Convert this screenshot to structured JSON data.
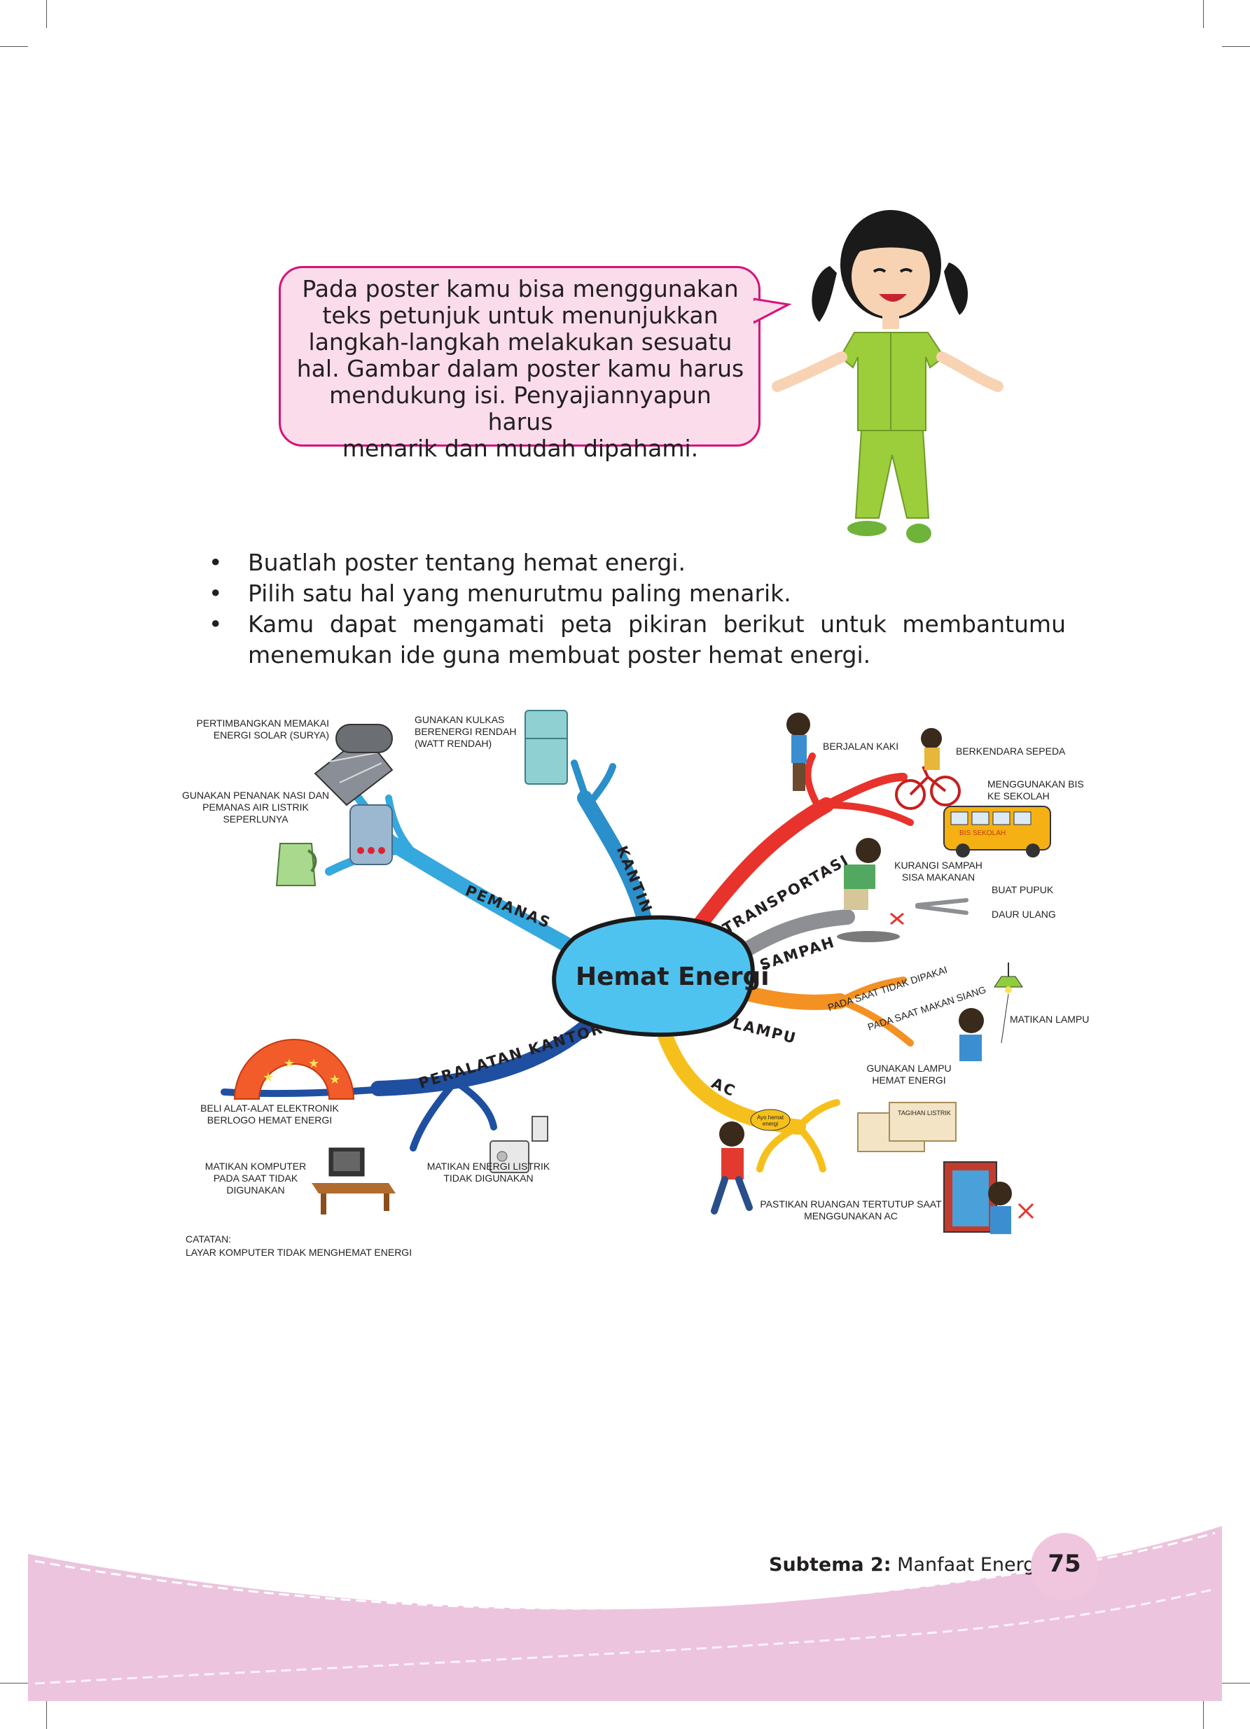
{
  "speech_bubble": {
    "lines": [
      "Pada poster kamu bisa menggunakan",
      "teks petunjuk untuk menunjukkan",
      "langkah-langkah melakukan sesuatu",
      "hal. Gambar dalam poster kamu harus",
      "mendukung isi. Penyajiannyapun harus",
      "menarik dan mudah dipahami."
    ]
  },
  "instructions": [
    "Buatlah poster tentang hemat energi.",
    "Pilih satu hal yang menurutmu paling menarik.",
    "Kamu dapat mengamati peta pikiran berikut untuk membantumu menemukan ide guna membuat poster hemat energi."
  ],
  "bullet_symbol": "•",
  "mind_map": {
    "center": "Hemat Energi",
    "branches": {
      "pemanas": "PEMANAS",
      "kantin": "KANTIN",
      "transportasi": "TRANSPORTASI",
      "sampah": "SAMPAH",
      "lampu": "LAMPU",
      "ac": "AC",
      "peralatan_kantor": "PERALATAN KANTOR"
    },
    "notes": {
      "solar": "PERTIMBANGKAN MEMAKAI ENERGI SOLAR (SURYA)",
      "kulkas": "GUNAKAN KULKAS BERENERGI RENDAH (WATT RENDAH)",
      "penanak": "GUNAKAN PENANAK NASI DAN PEMANAS AIR LISTRIK SEPERLUNYA",
      "berjalan": "BERJALAN KAKI",
      "sepeda": "BERKENDARA SEPEDA",
      "bis": "MENGGUNAKAN BIS KE SEKOLAH",
      "bus_sign": "BIS SEKOLAH",
      "sampah_makanan": "KURANGI SAMPAH SISA MAKANAN",
      "pupuk": "BUAT PUPUK",
      "daur_ulang": "DAUR ULANG",
      "tidak_dipakai": "PADA SAAT TIDAK DIPAKAI",
      "makan_siang": "PADA SAAT MAKAN SIANG",
      "matikan_lampu": "MATIKAN LAMPU",
      "lampu_hemat": "GUNAKAN LAMPU HEMAT ENERGI",
      "ruangan": "PASTIKAN RUANGAN TERTUTUP SAAT MENGGUNAKAN AC",
      "tagihan": "TAGIHAN LISTRIK",
      "hemat_bubble": "Ayo hemat energi",
      "logo": "BELI ALAT-ALAT ELEKTRONIK BERLOGO HEMAT ENERGI",
      "komputer": "MATIKAN KOMPUTER PADA SAAT TIDAK DIGUNAKAN",
      "energi_listrik": "MATIKAN ENERGI LISTRIK TIDAK DIGUNAKAN",
      "catatan_title": "CATATAN:",
      "catatan": "LAYAR KOMPUTER TIDAK MENGHEMAT ENERGI"
    }
  },
  "colors": {
    "bubble_border": "#d6127a",
    "bubble_fill": "#fadceb",
    "branch_pemanas": "#35a8de",
    "branch_kantin": "#2a8fcb",
    "branch_transport": "#e8322c",
    "branch_sampah": "#8d8f92",
    "branch_lampu": "#f39122",
    "branch_ac": "#f6c01c",
    "branch_kantor": "#1f4fa0",
    "footer_band": "#ecc4de"
  },
  "footer": {
    "subtheme_label": "Subtema 2:",
    "subtheme_title": "Manfaat Energi",
    "page_number": "75"
  }
}
